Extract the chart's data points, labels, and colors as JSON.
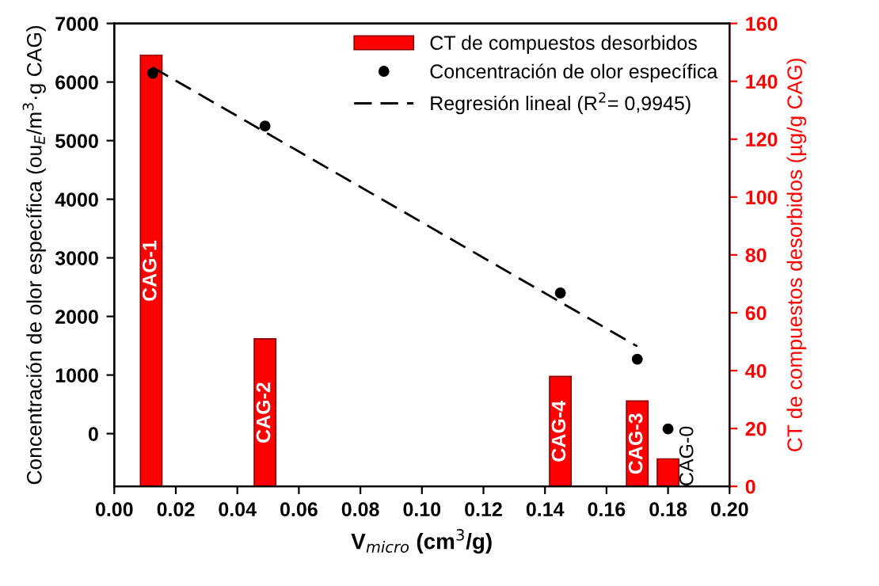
{
  "chart_data": {
    "type": "bar",
    "xlabel": "V$_{micro}$ (cm$^{3}$/g)",
    "ylabel": "Concentración de olor específica (ou$_{E}$/m$^{3}$·g CAG)",
    "y2label": "CT de compuestos desorbidos (µg/g CAG)",
    "series": [
      {
        "name": "CT de compuestos desorbidos",
        "axis": "y2",
        "color": "#ff0000",
        "x": [
          0.012,
          0.049,
          0.145,
          0.17,
          0.18
        ],
        "values": [
          149,
          51,
          38,
          29.5,
          9.5
        ],
        "value_labels": [
          "CAG-1",
          "CAG-2",
          "CAG-4",
          "CAG-3",
          "CAG-0"
        ]
      },
      {
        "name": "Concentración de olor específica",
        "type": "scatter",
        "color": "#000000",
        "marker": "circle",
        "x": [
          0.0125,
          0.049,
          0.145,
          0.17,
          0.18
        ],
        "values": [
          6150,
          5250,
          2400,
          1270,
          80
        ]
      },
      {
        "name": "Regresión lineal (R$^{2}$= 0,9945)",
        "type": "line",
        "color": "#000000",
        "line_style": "dashed",
        "x": [
          0.0125,
          0.17
        ],
        "values": [
          6250,
          1490
        ]
      }
    ],
    "xlim": [
      0,
      0.2
    ],
    "xticks": [
      {
        "value": 0,
        "label": "0.00"
      },
      {
        "value": 0.02,
        "label": "0.02"
      },
      {
        "value": 0.04,
        "label": "0.04"
      },
      {
        "value": 0.06,
        "label": "0.06"
      },
      {
        "value": 0.08,
        "label": "0.08"
      },
      {
        "value": 0.1,
        "label": "0.10"
      },
      {
        "value": 0.12,
        "label": "0.12"
      },
      {
        "value": 0.14,
        "label": "0.14"
      },
      {
        "value": 0.16,
        "label": "0.16"
      },
      {
        "value": 0.18,
        "label": "0.18"
      },
      {
        "value": 0.2,
        "label": "0.20"
      }
    ],
    "ylim": [
      -900,
      7000
    ],
    "yticks": [
      0,
      1000,
      2000,
      3000,
      4000,
      5000,
      6000,
      7000
    ],
    "y2lim": [
      0,
      160
    ],
    "y2ticks": [
      0,
      20,
      40,
      60,
      80,
      100,
      120,
      140,
      160
    ],
    "legend": "top right",
    "grid": false
  }
}
